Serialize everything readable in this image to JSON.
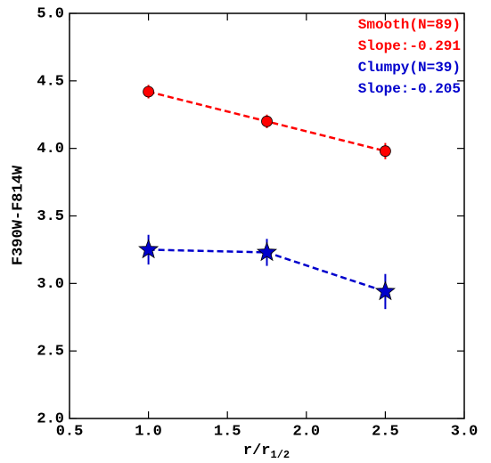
{
  "chart_data": {
    "type": "line",
    "x_label": "r/r",
    "x_label_sub": "1/2",
    "y_label": "F390W-F814W",
    "x": [
      1.0,
      1.75,
      2.5
    ],
    "series": [
      {
        "name": "Smooth",
        "color": "#ff0000",
        "marker": "circle",
        "values": [
          4.42,
          4.2,
          3.98
        ],
        "errors": [
          0.05,
          0.05,
          0.06
        ]
      },
      {
        "name": "Clumpy",
        "color": "#0000cc",
        "marker": "star",
        "values": [
          3.25,
          3.23,
          2.94
        ],
        "errors": [
          0.11,
          0.1,
          0.13
        ]
      }
    ],
    "annotations": [
      {
        "text": "Smooth(N=89)",
        "color": "#ff0000"
      },
      {
        "text": "Slope:-0.291",
        "color": "#ff0000"
      },
      {
        "text": "Clumpy(N=39)",
        "color": "#0000cc"
      },
      {
        "text": "Slope:-0.205",
        "color": "#0000cc"
      }
    ],
    "xlim": [
      0.5,
      3.0
    ],
    "xticks": [
      0.5,
      {
        "value": 1,
        "label": "1.0"
      },
      1.5,
      {
        "value": 2,
        "label": "2.0"
      },
      2.5,
      {
        "value": 3,
        "label": "3.0"
      }
    ],
    "ylim": [
      2.0,
      5.0
    ],
    "yticks": [
      {
        "value": 2,
        "label": "2.0"
      },
      2.5,
      {
        "value": 3,
        "label": "3.0"
      },
      3.5,
      {
        "value": 4,
        "label": "4.0"
      },
      4.5,
      {
        "value": 5,
        "label": "5.0"
      }
    ]
  }
}
